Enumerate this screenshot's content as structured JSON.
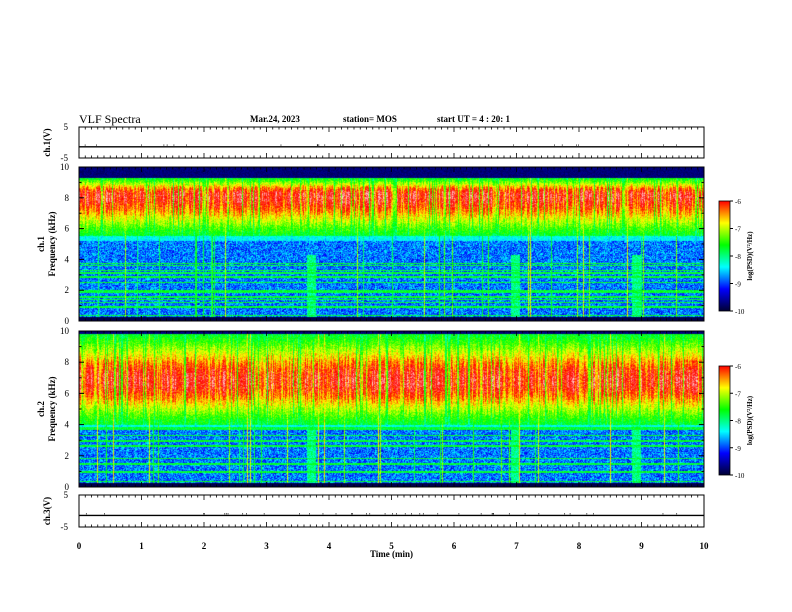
{
  "header": {
    "title": "VLF Spectra",
    "date": "Mar.24, 2023",
    "station": "station= MOS",
    "start_time": "start  UT =   4 : 20: 1"
  },
  "chart_data": [
    {
      "type": "line",
      "panel": "ch1-waveform",
      "ylabel": "ch.1(V)",
      "ylim": [
        -5,
        5
      ],
      "yticks": [
        "5",
        "-5"
      ],
      "xlim": [
        0,
        10
      ],
      "series": [
        {
          "x": [
            0,
            10
          ],
          "values": [
            -1.4,
            -1.4
          ]
        }
      ]
    },
    {
      "type": "heatmap",
      "panel": "ch1-spectrogram",
      "ylabel": "ch.1 Frequency (kHz)",
      "ylim": [
        0,
        10
      ],
      "yticks": [
        "0",
        "2",
        "4",
        "6",
        "8",
        "10"
      ],
      "xlim": [
        0,
        10
      ],
      "band_khz": [
        5.5,
        9.3
      ],
      "peak_khz": 8.2,
      "bursts_min": [
        3.72,
        6.98,
        8.92
      ],
      "colorbar": {
        "label": "log(PSD)(V²/Hz)",
        "ticks": [
          "-6",
          "-7",
          "-8",
          "-9",
          "-10"
        ],
        "range": [
          -10,
          -6
        ]
      }
    },
    {
      "type": "heatmap",
      "panel": "ch2-spectrogram",
      "ylabel": "ch.2 Frequency (kHz)",
      "ylim": [
        0,
        10
      ],
      "yticks": [
        "0",
        "2",
        "4",
        "6",
        "8",
        "10"
      ],
      "xlim": [
        0,
        10
      ],
      "band_khz": [
        4.0,
        9.8
      ],
      "peak_khz": 6.8,
      "bursts_min": [
        3.72,
        6.98,
        8.92
      ],
      "colorbar": {
        "label": "log(PSD)(V²/Hz)",
        "ticks": [
          "-6",
          "-7",
          "-8",
          "-9",
          "-10"
        ],
        "range": [
          -10,
          -6
        ]
      }
    },
    {
      "type": "line",
      "panel": "ch3-waveform",
      "ylabel": "ch.3(V)",
      "ylim": [
        -5,
        5
      ],
      "yticks": [
        "5",
        "-5"
      ],
      "xlim": [
        0,
        10
      ],
      "xlabel": "Time  (min)",
      "xticks": [
        "0",
        "1",
        "2",
        "3",
        "4",
        "5",
        "6",
        "7",
        "8",
        "9",
        "10"
      ],
      "series": [
        {
          "x": [
            0,
            10
          ],
          "values": [
            -1.4,
            -1.4
          ]
        }
      ]
    }
  ],
  "colormap": [
    "#000033",
    "#0000ff",
    "#00ffff",
    "#00ff00",
    "#ffff00",
    "#ff0000",
    "#ffffff"
  ]
}
